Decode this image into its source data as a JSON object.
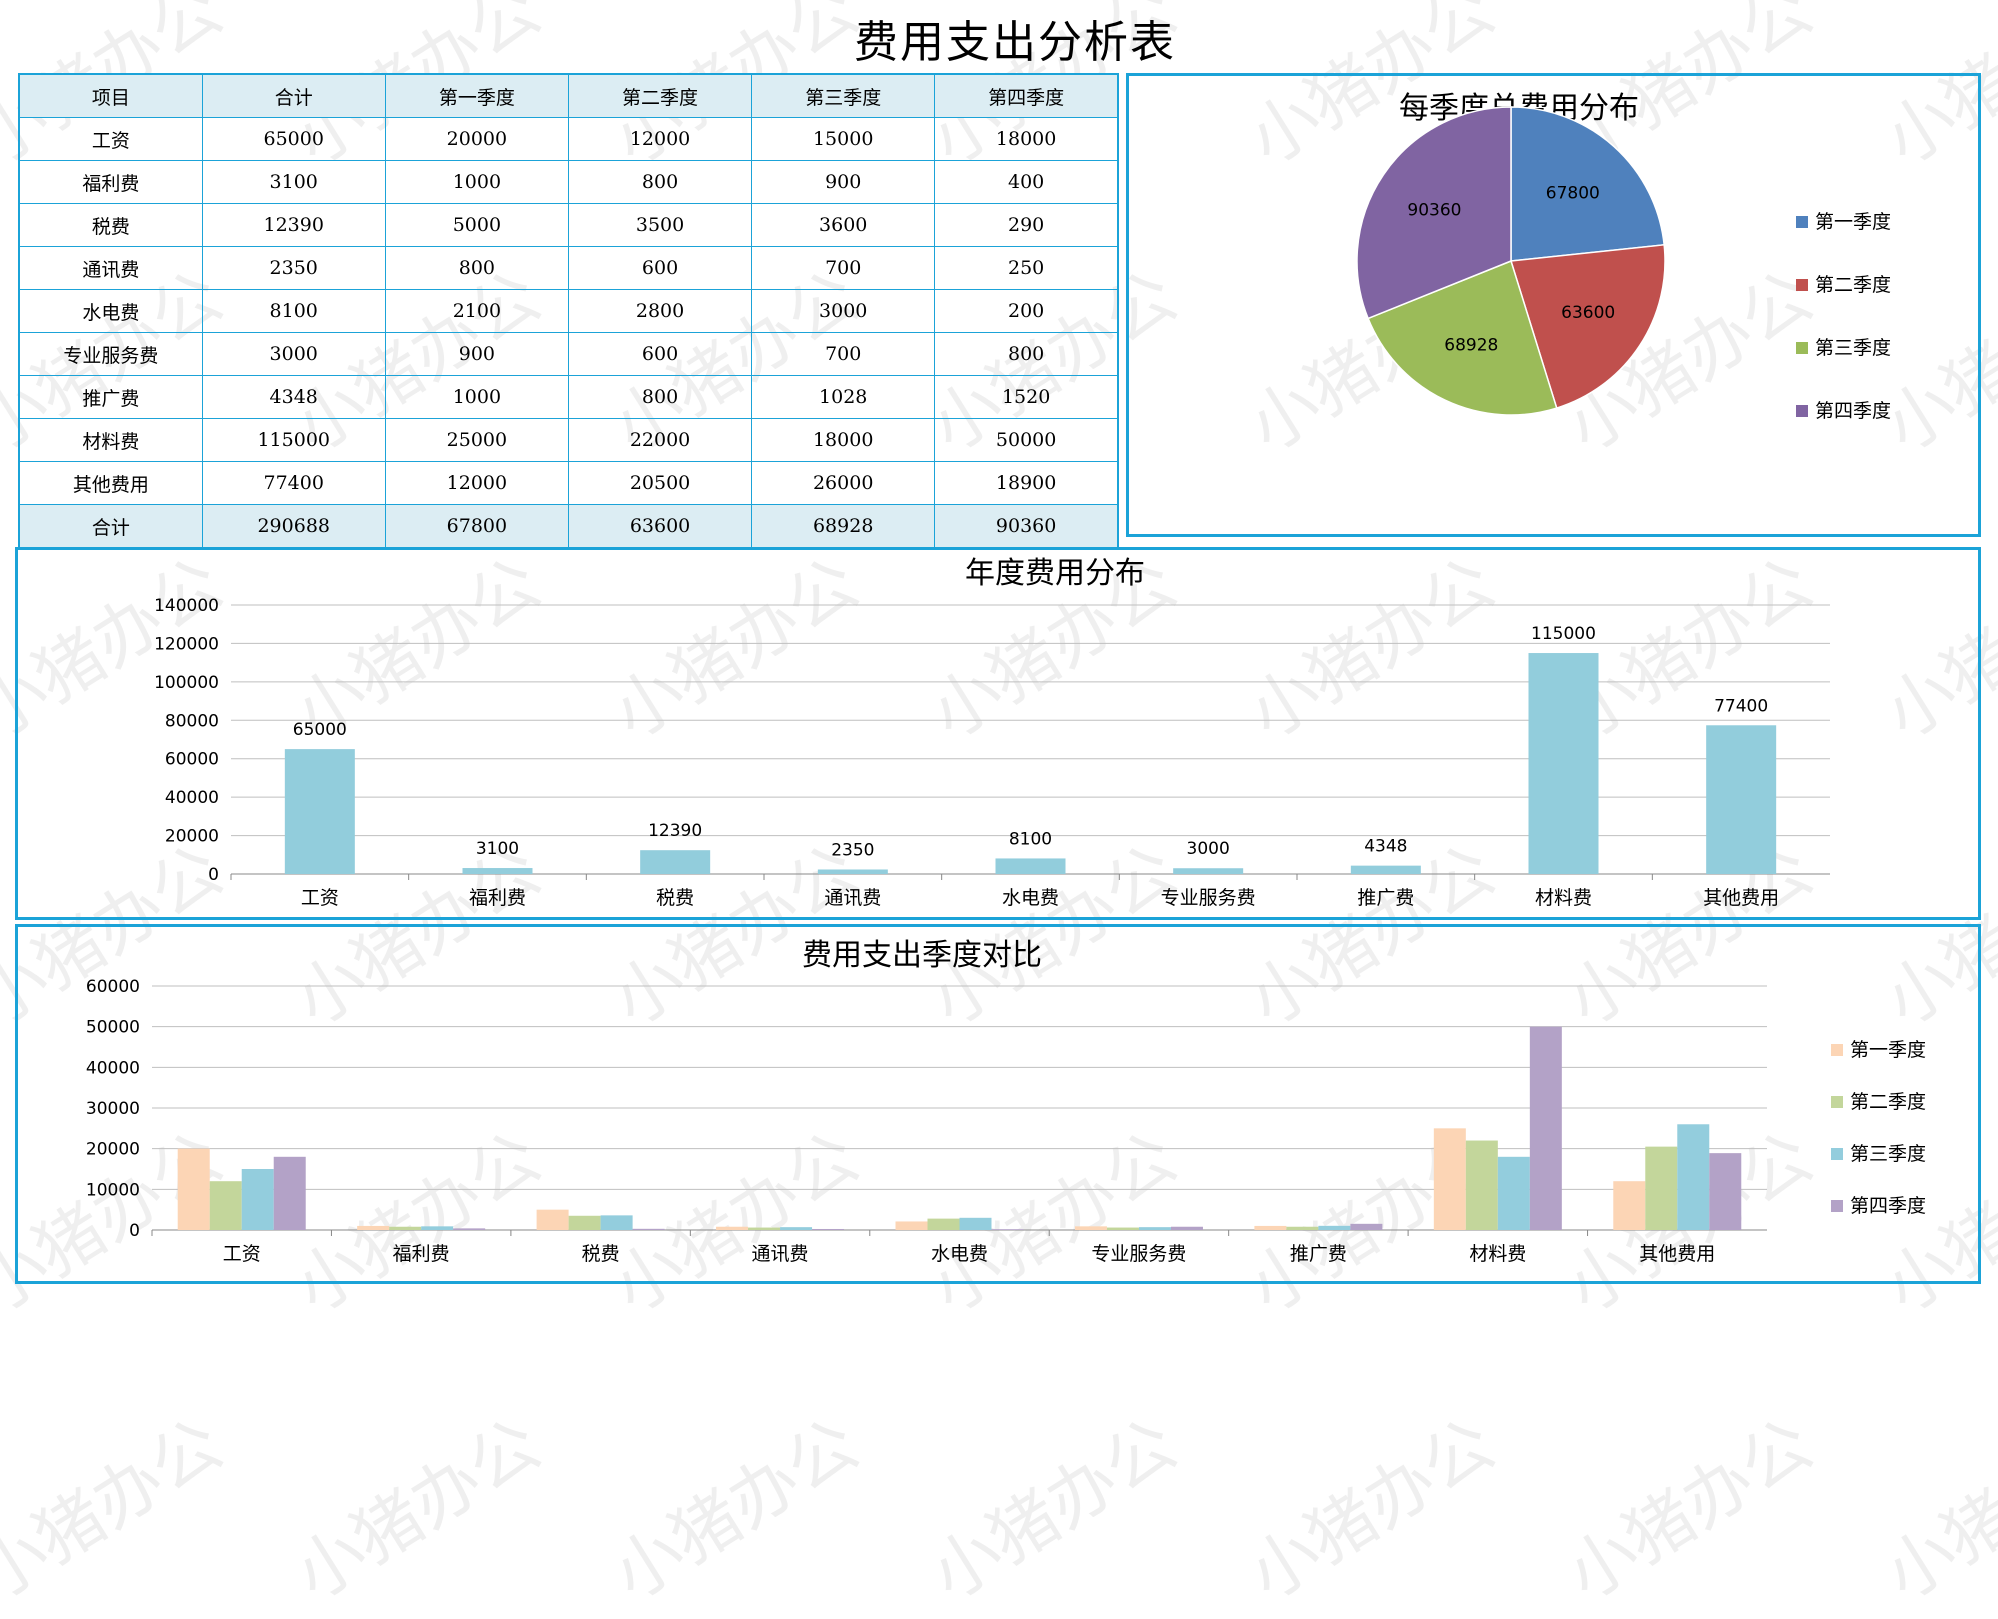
{
  "title": "费用支出分析表",
  "table": {
    "headers": [
      "项目",
      "合计",
      "第一季度",
      "第二季度",
      "第三季度",
      "第四季度"
    ],
    "rows": [
      [
        "工资",
        "65000",
        "20000",
        "12000",
        "15000",
        "18000"
      ],
      [
        "福利费",
        "3100",
        "1000",
        "800",
        "900",
        "400"
      ],
      [
        "税费",
        "12390",
        "5000",
        "3500",
        "3600",
        "290"
      ],
      [
        "通讯费",
        "2350",
        "800",
        "600",
        "700",
        "250"
      ],
      [
        "水电费",
        "8100",
        "2100",
        "2800",
        "3000",
        "200"
      ],
      [
        "专业服务费",
        "3000",
        "900",
        "600",
        "700",
        "800"
      ],
      [
        "推广费",
        "4348",
        "1000",
        "800",
        "1028",
        "1520"
      ],
      [
        "材料费",
        "115000",
        "25000",
        "22000",
        "18000",
        "50000"
      ],
      [
        "其他费用",
        "77400",
        "12000",
        "20500",
        "26000",
        "18900"
      ]
    ],
    "total": [
      "合计",
      "290688",
      "67800",
      "63600",
      "68928",
      "90360"
    ]
  },
  "watermark": "小猪办公",
  "chart_data": [
    {
      "type": "pie",
      "title": "每季度总费用分布",
      "categories": [
        "第一季度",
        "第二季度",
        "第三季度",
        "第四季度"
      ],
      "values": [
        67800,
        63600,
        68928,
        90360
      ],
      "colors": [
        "#4f81bd",
        "#c0504d",
        "#9bbb59",
        "#8064a2"
      ],
      "legend": "right"
    },
    {
      "type": "bar",
      "title": "年度费用分布",
      "categories": [
        "工资",
        "福利费",
        "税费",
        "通讯费",
        "水电费",
        "专业服务费",
        "推广费",
        "材料费",
        "其他费用"
      ],
      "values": [
        65000,
        3100,
        12390,
        2350,
        8100,
        3000,
        4348,
        115000,
        77400
      ],
      "ylim": [
        0,
        140000
      ],
      "yticks": [
        0,
        20000,
        40000,
        60000,
        80000,
        100000,
        120000,
        140000
      ],
      "color": "#92cddc",
      "grid": true
    },
    {
      "type": "bar",
      "title": "费用支出季度对比",
      "categories": [
        "工资",
        "福利费",
        "税费",
        "通讯费",
        "水电费",
        "专业服务费",
        "推广费",
        "材料费",
        "其他费用"
      ],
      "series": [
        {
          "name": "第一季度",
          "values": [
            20000,
            1000,
            5000,
            800,
            2100,
            900,
            1000,
            25000,
            12000
          ],
          "color": "#fcd5b5"
        },
        {
          "name": "第二季度",
          "values": [
            12000,
            800,
            3500,
            600,
            2800,
            600,
            800,
            22000,
            20500
          ],
          "color": "#c3d69b"
        },
        {
          "name": "第三季度",
          "values": [
            15000,
            900,
            3600,
            700,
            3000,
            700,
            1028,
            18000,
            26000
          ],
          "color": "#93cddd"
        },
        {
          "name": "第四季度",
          "values": [
            18000,
            400,
            290,
            250,
            200,
            800,
            1520,
            50000,
            18900
          ],
          "color": "#b3a2c7"
        }
      ],
      "ylim": [
        0,
        60000
      ],
      "yticks": [
        0,
        10000,
        20000,
        30000,
        40000,
        50000,
        60000
      ],
      "legend": "right",
      "grid": true
    }
  ]
}
